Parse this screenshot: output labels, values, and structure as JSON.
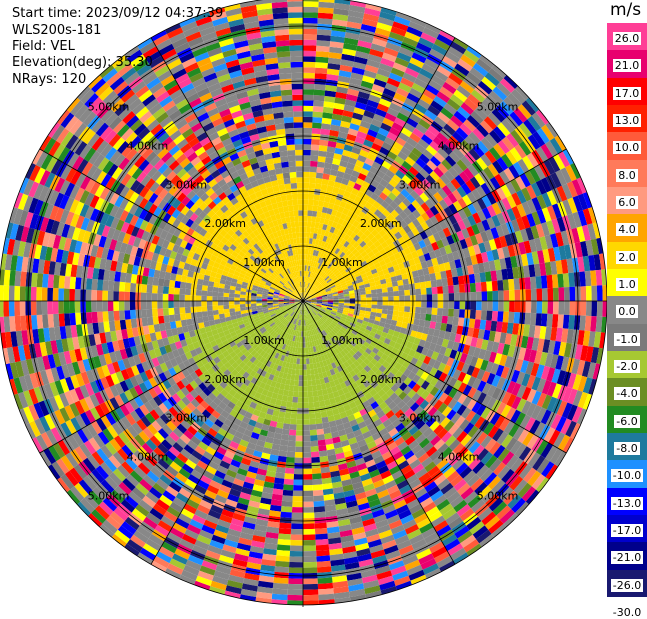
{
  "header": {
    "start_time": "Start time: 2023/09/12 04:37:39",
    "instrument": "WLS200s-181",
    "field": "Field: VEL",
    "elevation": "Elevation(deg): 35.30",
    "nrays": "NRays: 120"
  },
  "colorbar": {
    "unit": "m/s",
    "ticks": [
      "26.0",
      "21.0",
      "17.0",
      "13.0",
      "10.0",
      "8.0",
      "6.0",
      "4.0",
      "2.0",
      "1.0",
      "0.0",
      "-1.0",
      "-2.0",
      "-4.0",
      "-6.0",
      "-8.0",
      "-10.0",
      "-13.0",
      "-17.0",
      "-21.0",
      "-26.0",
      "-30.0"
    ],
    "colors": [
      "#ff3e96",
      "#e8006e",
      "#ff0000",
      "#ff2000",
      "#ff5a3a",
      "#ff7a5a",
      "#ff9a80",
      "#ffa500",
      "#ffd700",
      "#ffff00",
      "#888888",
      "#7a7a7a",
      "#a6c832",
      "#6b8e23",
      "#228b22",
      "#1e7a9e",
      "#1e90ff",
      "#0000ff",
      "#0000cd",
      "#00008b",
      "#191970"
    ]
  },
  "chart_data": {
    "type": "heatmap",
    "projection": "polar-ppi",
    "field": "VEL",
    "units": "m/s",
    "nrays": 120,
    "range_rings_km": [
      1.0,
      2.0,
      3.0,
      4.0,
      5.0
    ],
    "range_labels": [
      "1.00km",
      "2.00km",
      "3.00km",
      "4.00km",
      "5.00km"
    ],
    "azimuth_lines_deg": [
      0,
      30,
      60,
      90,
      120,
      150,
      180,
      210,
      240,
      270,
      300,
      330
    ],
    "value_range": [
      -30.0,
      26.0
    ],
    "near_range_pattern": {
      "north_sector_velocity_ms": 2.0,
      "south_sector_velocity_ms": -2.0,
      "zero_band_velocity_ms": 0.0,
      "coherent_extent_km": 2.2
    }
  }
}
